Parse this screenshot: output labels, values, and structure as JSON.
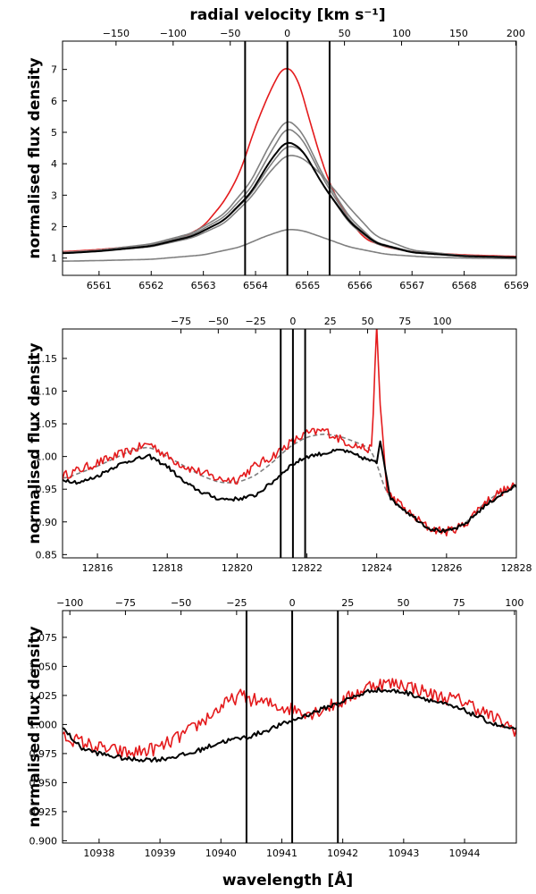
{
  "figure_title": "radial velocity [km s⁻¹]",
  "bottom_label": "wavelength [Å]",
  "colors": {
    "black": "#000000",
    "gray": "#808080",
    "red": "#e41a1c"
  },
  "chart_data": [
    {
      "type": "line",
      "panel": "top",
      "ylabel": "normalised flux density",
      "xlabel_top": "radial velocity [km s⁻¹]",
      "xlim": [
        6560.3,
        6569.0
      ],
      "ylim": [
        0.45,
        7.9
      ],
      "xticks": [
        6561,
        6562,
        6563,
        6564,
        6565,
        6566,
        6567,
        6568,
        6569
      ],
      "yticks": [
        1,
        2,
        3,
        4,
        5,
        6,
        7
      ],
      "top_ticks_kms": [
        -150,
        -100,
        -50,
        0,
        50,
        100,
        150,
        200
      ],
      "top_axis_map": {
        "wl_at_zero": 6564.61,
        "wl_per_kms": 0.021897
      },
      "vlines": [
        6563.8,
        6564.61,
        6565.42
      ],
      "series": [
        {
          "name": "red spectrum",
          "color": "red",
          "x": [
            6560.3,
            6561,
            6562,
            6562.6,
            6563,
            6563.4,
            6563.7,
            6564,
            6564.3,
            6564.55,
            6564.8,
            6565.05,
            6565.3,
            6565.55,
            6565.8,
            6566.1,
            6566.5,
            6567,
            6568,
            6569
          ],
          "y": [
            1.2,
            1.27,
            1.42,
            1.65,
            2.0,
            2.8,
            3.7,
            5.2,
            6.4,
            7.15,
            6.8,
            5.3,
            3.9,
            2.9,
            2.2,
            1.6,
            1.35,
            1.2,
            1.1,
            1.05
          ]
        },
        {
          "name": "gray spectrum 1",
          "color": "gray",
          "x": [
            6560.3,
            6561,
            6562,
            6562.8,
            6563.4,
            6563.9,
            6564.3,
            6564.6,
            6564.9,
            6565.3,
            6565.8,
            6566.3,
            6567,
            6568,
            6569
          ],
          "y": [
            1.18,
            1.25,
            1.45,
            1.8,
            2.4,
            3.4,
            4.7,
            5.45,
            5.0,
            3.6,
            2.3,
            1.5,
            1.2,
            1.08,
            1.03
          ]
        },
        {
          "name": "gray spectrum 2",
          "color": "gray",
          "x": [
            6560.3,
            6561,
            6562,
            6562.8,
            6563.4,
            6563.9,
            6564.3,
            6564.6,
            6564.9,
            6565.3,
            6565.8,
            6566.3,
            6567,
            6568,
            6569
          ],
          "y": [
            1.17,
            1.24,
            1.42,
            1.75,
            2.3,
            3.2,
            4.4,
            5.2,
            4.8,
            3.5,
            2.2,
            1.48,
            1.18,
            1.07,
            1.03
          ]
        },
        {
          "name": "gray spectrum 3",
          "color": "gray",
          "x": [
            6560.3,
            6561,
            6562,
            6562.8,
            6563.4,
            6563.9,
            6564.3,
            6564.6,
            6564.9,
            6565.3,
            6565.8,
            6566.3,
            6567,
            6568,
            6569
          ],
          "y": [
            1.16,
            1.22,
            1.38,
            1.7,
            2.2,
            3.0,
            4.0,
            4.6,
            4.45,
            3.3,
            2.1,
            1.45,
            1.17,
            1.06,
            1.02
          ]
        },
        {
          "name": "gray spectrum 4",
          "color": "gray",
          "x": [
            6560.3,
            6561,
            6562,
            6562.8,
            6563.4,
            6563.9,
            6564.3,
            6564.6,
            6564.9,
            6565.3,
            6565.8,
            6566.3,
            6567,
            6568,
            6569
          ],
          "y": [
            1.15,
            1.21,
            1.36,
            1.65,
            2.1,
            2.9,
            3.8,
            4.3,
            4.2,
            3.6,
            2.6,
            1.7,
            1.25,
            1.07,
            1.02
          ]
        },
        {
          "name": "gray spectrum 5 (weak)",
          "color": "gray",
          "x": [
            6560.3,
            6561,
            6562,
            6563,
            6563.7,
            6564.2,
            6564.6,
            6564.9,
            6565.3,
            6565.8,
            6566.5,
            6567.3,
            6568,
            6569
          ],
          "y": [
            0.9,
            0.92,
            0.96,
            1.1,
            1.35,
            1.7,
            1.92,
            1.88,
            1.65,
            1.35,
            1.12,
            1.03,
            1.0,
            0.98
          ]
        },
        {
          "name": "black mean spectrum",
          "color": "black",
          "x": [
            6560.3,
            6561,
            6562,
            6562.8,
            6563.4,
            6563.9,
            6564.3,
            6564.6,
            6564.9,
            6565.3,
            6565.8,
            6566.3,
            6567,
            6568,
            6569
          ],
          "y": [
            1.15,
            1.22,
            1.38,
            1.7,
            2.2,
            3.05,
            4.15,
            4.75,
            4.45,
            3.3,
            2.15,
            1.48,
            1.18,
            1.06,
            1.02
          ]
        }
      ]
    },
    {
      "type": "line",
      "panel": "middle",
      "ylabel": "normalised flux density",
      "xlim": [
        12815,
        12828
      ],
      "ylim": [
        0.845,
        1.195
      ],
      "xticks": [
        12816,
        12818,
        12820,
        12822,
        12824,
        12826,
        12828
      ],
      "yticks": [
        0.85,
        0.9,
        0.95,
        1.0,
        1.05,
        1.1,
        1.15
      ],
      "top_ticks_kms": [
        -75,
        -50,
        -25,
        0,
        25,
        50,
        75,
        100
      ],
      "top_axis_map": {
        "wl_at_zero": 12821.6,
        "wl_per_kms": 0.04277
      },
      "vlines": [
        12821.25,
        12821.6,
        12821.95
      ],
      "series": [
        {
          "name": "gray dashed spectrum",
          "color": "gray",
          "dashed": true,
          "x": [
            12815,
            12816,
            12817,
            12817.5,
            12818,
            12818.5,
            12819,
            12819.5,
            12820,
            12820.5,
            12821,
            12821.5,
            12822,
            12822.5,
            12823,
            12823.5,
            12823.9,
            12824.1,
            12824.3,
            12825,
            12825.5,
            12826,
            12826.5,
            12827,
            12827.5,
            12828
          ],
          "y": [
            0.965,
            0.985,
            1.01,
            1.015,
            1.0,
            0.985,
            0.97,
            0.96,
            0.96,
            0.97,
            0.99,
            1.015,
            1.03,
            1.035,
            1.03,
            1.02,
            1.01,
            0.97,
            0.94,
            0.91,
            0.89,
            0.885,
            0.895,
            0.925,
            0.945,
            0.955
          ]
        },
        {
          "name": "red spectrum",
          "color": "red",
          "noise": 0.007,
          "x": [
            12815,
            12816,
            12817,
            12817.5,
            12818,
            12818.5,
            12819,
            12819.5,
            12820,
            12820.5,
            12821,
            12821.5,
            12822,
            12822.5,
            12823,
            12823.5,
            12823.85,
            12824.0,
            12824.1,
            12824.3,
            12825,
            12825.5,
            12826,
            12826.5,
            12827,
            12827.5,
            12828
          ],
          "y": [
            0.97,
            0.99,
            1.01,
            1.02,
            1.0,
            0.985,
            0.975,
            0.965,
            0.965,
            0.985,
            1.0,
            1.02,
            1.035,
            1.04,
            1.025,
            1.015,
            1.01,
            1.195,
            1.08,
            0.945,
            0.91,
            0.89,
            0.885,
            0.895,
            0.925,
            0.945,
            0.955
          ]
        },
        {
          "name": "black spectrum",
          "color": "black",
          "noise": 0.003,
          "x": [
            12815,
            12815.5,
            12816,
            12816.5,
            12817,
            12817.5,
            12818,
            12818.5,
            12819,
            12819.5,
            12820,
            12820.5,
            12821,
            12821.5,
            12822,
            12822.5,
            12823,
            12823.5,
            12824,
            12824.1,
            12824.4,
            12825,
            12825.5,
            12826,
            12826.5,
            12827,
            12827.5,
            12828
          ],
          "y": [
            0.965,
            0.96,
            0.97,
            0.985,
            0.995,
            1.0,
            0.985,
            0.96,
            0.945,
            0.935,
            0.935,
            0.94,
            0.96,
            0.985,
            1.0,
            1.005,
            1.01,
            1.0,
            0.99,
            1.025,
            0.935,
            0.91,
            0.89,
            0.885,
            0.895,
            0.92,
            0.94,
            0.955
          ]
        }
      ]
    },
    {
      "type": "line",
      "panel": "bottom",
      "ylabel": "normalised flux density",
      "xlabel": "wavelength [Å]",
      "xlim": [
        10937.4,
        10944.85
      ],
      "ylim": [
        0.898,
        1.098
      ],
      "xticks": [
        10938,
        10939,
        10940,
        10941,
        10942,
        10943,
        10944
      ],
      "yticks": [
        0.9,
        0.925,
        0.95,
        0.975,
        1.0,
        1.025,
        1.05,
        1.075
      ],
      "top_ticks_kms": [
        -100,
        -75,
        -50,
        -25,
        0,
        25,
        50,
        75,
        100
      ],
      "top_axis_map": {
        "wl_at_zero": 10941.17,
        "wl_per_kms": 0.036497
      },
      "vlines": [
        10940.42,
        10941.17,
        10941.92
      ],
      "series": [
        {
          "name": "red spectrum",
          "color": "red",
          "noise": 0.006,
          "x": [
            10937.4,
            10938,
            10938.5,
            10939,
            10939.5,
            10940,
            10940.3,
            10940.6,
            10941,
            10941.5,
            10942,
            10942.5,
            10943,
            10943.5,
            10944,
            10944.5,
            10944.85
          ],
          "y": [
            0.99,
            0.98,
            0.975,
            0.98,
            0.995,
            1.015,
            1.025,
            1.02,
            1.015,
            1.01,
            1.02,
            1.035,
            1.035,
            1.025,
            1.02,
            1.005,
            0.995
          ]
        },
        {
          "name": "black spectrum",
          "color": "black",
          "noise": 0.002,
          "x": [
            10937.4,
            10937.7,
            10938,
            10938.5,
            10939,
            10939.5,
            10940,
            10940.5,
            10941,
            10941.5,
            10942,
            10942.5,
            10943,
            10943.5,
            10944,
            10944.5,
            10944.85
          ],
          "y": [
            0.997,
            0.98,
            0.975,
            0.97,
            0.97,
            0.975,
            0.985,
            0.99,
            1.0,
            1.01,
            1.02,
            1.03,
            1.028,
            1.02,
            1.012,
            1.0,
            0.995
          ]
        }
      ]
    }
  ]
}
